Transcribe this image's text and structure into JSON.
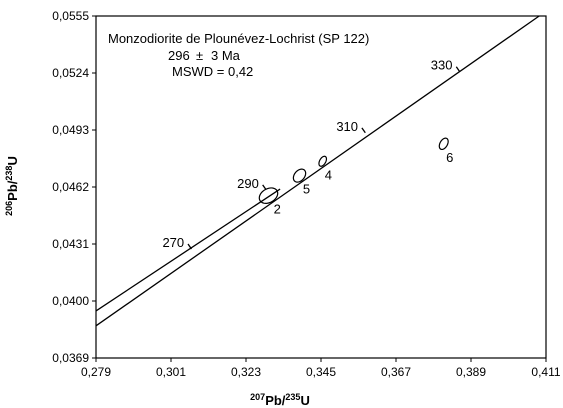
{
  "chart_data": {
    "type": "scatter",
    "subtype": "concordia-diagram",
    "title": "",
    "annotation": {
      "sample": "Monzodiorite de Plounévez-Lochrist (SP 122)",
      "age_value": "296",
      "age_pm": "±",
      "age_unit": "3 Ma",
      "mswd": "MSWD = 0,42"
    },
    "xlabel": {
      "sup1": "207",
      "base1": "Pb/",
      "sup2": "235",
      "base2": "U"
    },
    "ylabel": {
      "sup1": "206",
      "base1": "Pb/",
      "sup2": "238",
      "base2": "U"
    },
    "xlim": [
      0.279,
      0.411
    ],
    "ylim": [
      0.0369,
      0.0555
    ],
    "x_ticks": [
      {
        "value": 0.279,
        "label": "0,279"
      },
      {
        "value": 0.301,
        "label": "0,301"
      },
      {
        "value": 0.323,
        "label": "0,323"
      },
      {
        "value": 0.345,
        "label": "0,345"
      },
      {
        "value": 0.367,
        "label": "0,367"
      },
      {
        "value": 0.389,
        "label": "0,389"
      },
      {
        "value": 0.411,
        "label": "0,411"
      }
    ],
    "y_ticks": [
      {
        "value": 0.0369,
        "label": "0,0369"
      },
      {
        "value": 0.04,
        "label": "0,0400"
      },
      {
        "value": 0.0431,
        "label": "0,0431"
      },
      {
        "value": 0.0462,
        "label": "0,0462"
      },
      {
        "value": 0.0493,
        "label": "0,0493"
      },
      {
        "value": 0.0524,
        "label": "0,0524"
      },
      {
        "value": 0.0555,
        "label": "0,0555"
      }
    ],
    "concordia": [
      {
        "x": 0.279,
        "y": 0.03865
      },
      {
        "x": 0.409,
        "y": 0.0555
      }
    ],
    "age_marks": [
      {
        "label": "270",
        "x": 0.307,
        "y": 0.04283
      },
      {
        "label": "290",
        "x": 0.3289,
        "y": 0.04605
      },
      {
        "label": "310",
        "x": 0.358,
        "y": 0.04915
      },
      {
        "label": "330",
        "x": 0.3857,
        "y": 0.05247
      }
    ],
    "discordia": [
      {
        "x": 0.279,
        "y": 0.03946
      },
      {
        "x": 0.333,
        "y": 0.04609
      }
    ],
    "ellipses": [
      {
        "label": "2",
        "x": 0.3296,
        "y": 0.04573,
        "sx": 0.0027,
        "sy": 0.0004,
        "tilt": 0.0001259
      },
      {
        "label": "5",
        "x": 0.3387,
        "y": 0.04682,
        "sx": 0.0018,
        "sy": 0.00033,
        "tilt": 0.0001259
      },
      {
        "label": "4",
        "x": 0.3455,
        "y": 0.0476,
        "sx": 0.0011,
        "sy": 0.00024,
        "tilt": 0.0001259
      },
      {
        "label": "6",
        "x": 0.381,
        "y": 0.04855,
        "sx": 0.0013,
        "sy": 0.00028,
        "tilt": 0.0001259
      }
    ]
  }
}
